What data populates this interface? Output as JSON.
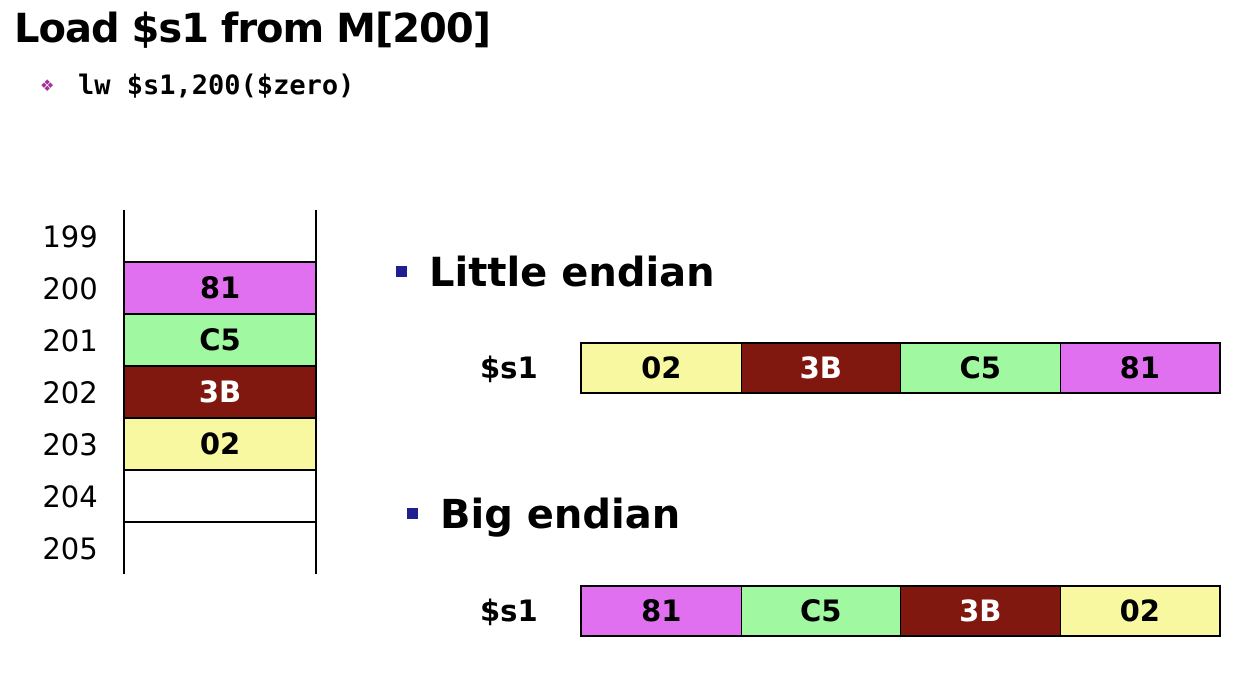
{
  "title": "Load $s1 from M[200]",
  "code": {
    "bullet_icon": "diamond-bullet-icon",
    "text": "lw $s1,200($zero)"
  },
  "colors": {
    "magenta": "#e070f0",
    "green": "#a0f8a0",
    "darkred": "#801810",
    "yellow": "#f8f8a0",
    "bullet_square": "#1f1f8f",
    "code_bullet": "#a0339b"
  },
  "memory": {
    "rows": [
      {
        "addr": "199",
        "value": "",
        "color": ""
      },
      {
        "addr": "200",
        "value": "81",
        "color": "#e070f0"
      },
      {
        "addr": "201",
        "value": "C5",
        "color": "#a0f8a0"
      },
      {
        "addr": "202",
        "value": "3B",
        "color": "#801810"
      },
      {
        "addr": "203",
        "value": "02",
        "color": "#f8f8a0"
      },
      {
        "addr": "204",
        "value": "",
        "color": ""
      },
      {
        "addr": "205",
        "value": "",
        "color": ""
      }
    ]
  },
  "little_endian": {
    "heading": "Little endian",
    "register_label": "$s1",
    "cells": [
      {
        "value": "02",
        "color": "#f8f8a0"
      },
      {
        "value": "3B",
        "color": "#801810"
      },
      {
        "value": "C5",
        "color": "#a0f8a0"
      },
      {
        "value": "81",
        "color": "#e070f0"
      }
    ]
  },
  "big_endian": {
    "heading": "Big endian",
    "register_label": "$s1",
    "cells": [
      {
        "value": "81",
        "color": "#e070f0"
      },
      {
        "value": "C5",
        "color": "#a0f8a0"
      },
      {
        "value": "3B",
        "color": "#801810"
      },
      {
        "value": "02",
        "color": "#f8f8a0"
      }
    ]
  }
}
